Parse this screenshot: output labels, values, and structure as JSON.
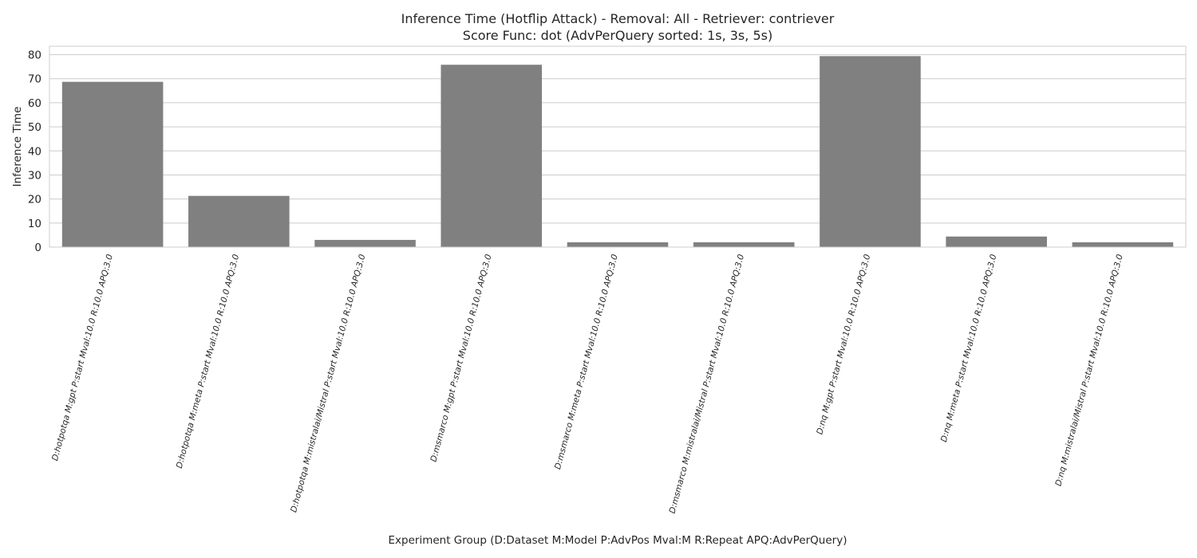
{
  "chart_data": {
    "type": "bar",
    "title": "Inference Time (Hotflip Attack) - Removal: All - Retriever: contriever",
    "subtitle": "Score Func: dot (AdvPerQuery sorted: 1s, 3s, 5s)",
    "xlabel": "Experiment Group (D:Dataset M:Model P:AdvPos Mval:M R:Repeat APQ:AdvPerQuery)",
    "ylabel": "Inference Time",
    "categories": [
      "D:hotpotqa M:gpt P:start Mval:10.0 R:10.0 APQ:3.0",
      "D:hotpotqa M:meta P:start Mval:10.0 R:10.0 APQ:3.0",
      "D:hotpotqa M:mistralai/Mistral P:start Mval:10.0 R:10.0 APQ:3.0",
      "D:msmarco M:gpt P:start Mval:10.0 R:10.0 APQ:3.0",
      "D:msmarco M:meta P:start Mval:10.0 R:10.0 APQ:3.0",
      "D:msmarco M:mistralai/Mistral P:start Mval:10.0 R:10.0 APQ:3.0",
      "D:nq M:gpt P:start Mval:10.0 R:10.0 APQ:3.0",
      "D:nq M:meta P:start Mval:10.0 R:10.0 APQ:3.0",
      "D:nq M:mistralai/Mistral P:start Mval:10.0 R:10.0 APQ:3.0"
    ],
    "values": [
      68.7,
      21.3,
      3.0,
      75.8,
      2.0,
      2.0,
      79.4,
      4.4,
      2.0
    ],
    "ylim": [
      0,
      83.5
    ],
    "yticks": [
      0,
      10,
      20,
      30,
      40,
      50,
      60,
      70,
      80
    ],
    "grid": true,
    "bar_color": "#808080",
    "grid_color": "#cccccc",
    "spine_color": "#cccccc"
  }
}
